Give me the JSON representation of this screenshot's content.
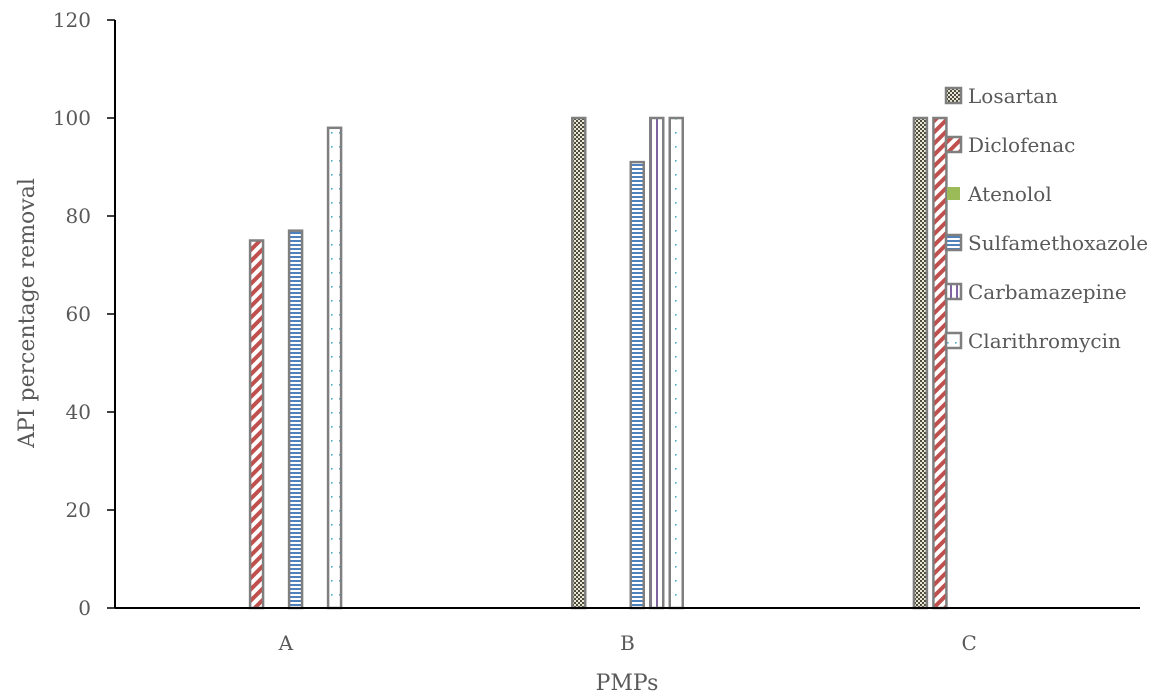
{
  "chart_data": {
    "type": "bar",
    "categories": [
      "A",
      "B",
      "C"
    ],
    "xlabel": "PMPs",
    "ylabel": "API  percentage removal",
    "ylim": [
      0,
      120
    ],
    "yticks": [
      0,
      20,
      40,
      60,
      80,
      100,
      120
    ],
    "grid": false,
    "legend_position": "right",
    "series": [
      {
        "name": "Losartan",
        "values": [
          null,
          100,
          100
        ],
        "color": "#4d4d3a",
        "pattern": "dots-dense"
      },
      {
        "name": "Diclofenac",
        "values": [
          75,
          null,
          100
        ],
        "color": "#c0504d",
        "pattern": "diagonal-stripes"
      },
      {
        "name": "Atenolol",
        "values": [
          null,
          null,
          null
        ],
        "color": "#9bbb59",
        "pattern": "solid"
      },
      {
        "name": "Sulfamethoxazole",
        "values": [
          77,
          91,
          null
        ],
        "color": "#4f81bd",
        "pattern": "horizontal-lines"
      },
      {
        "name": "Carbamazepine",
        "values": [
          null,
          100,
          null
        ],
        "color": "#8064a2",
        "pattern": "vertical-lines"
      },
      {
        "name": "Clarithromycin",
        "values": [
          98,
          100,
          null
        ],
        "color": "#4bacc6",
        "pattern": "sparse-dots"
      }
    ]
  }
}
